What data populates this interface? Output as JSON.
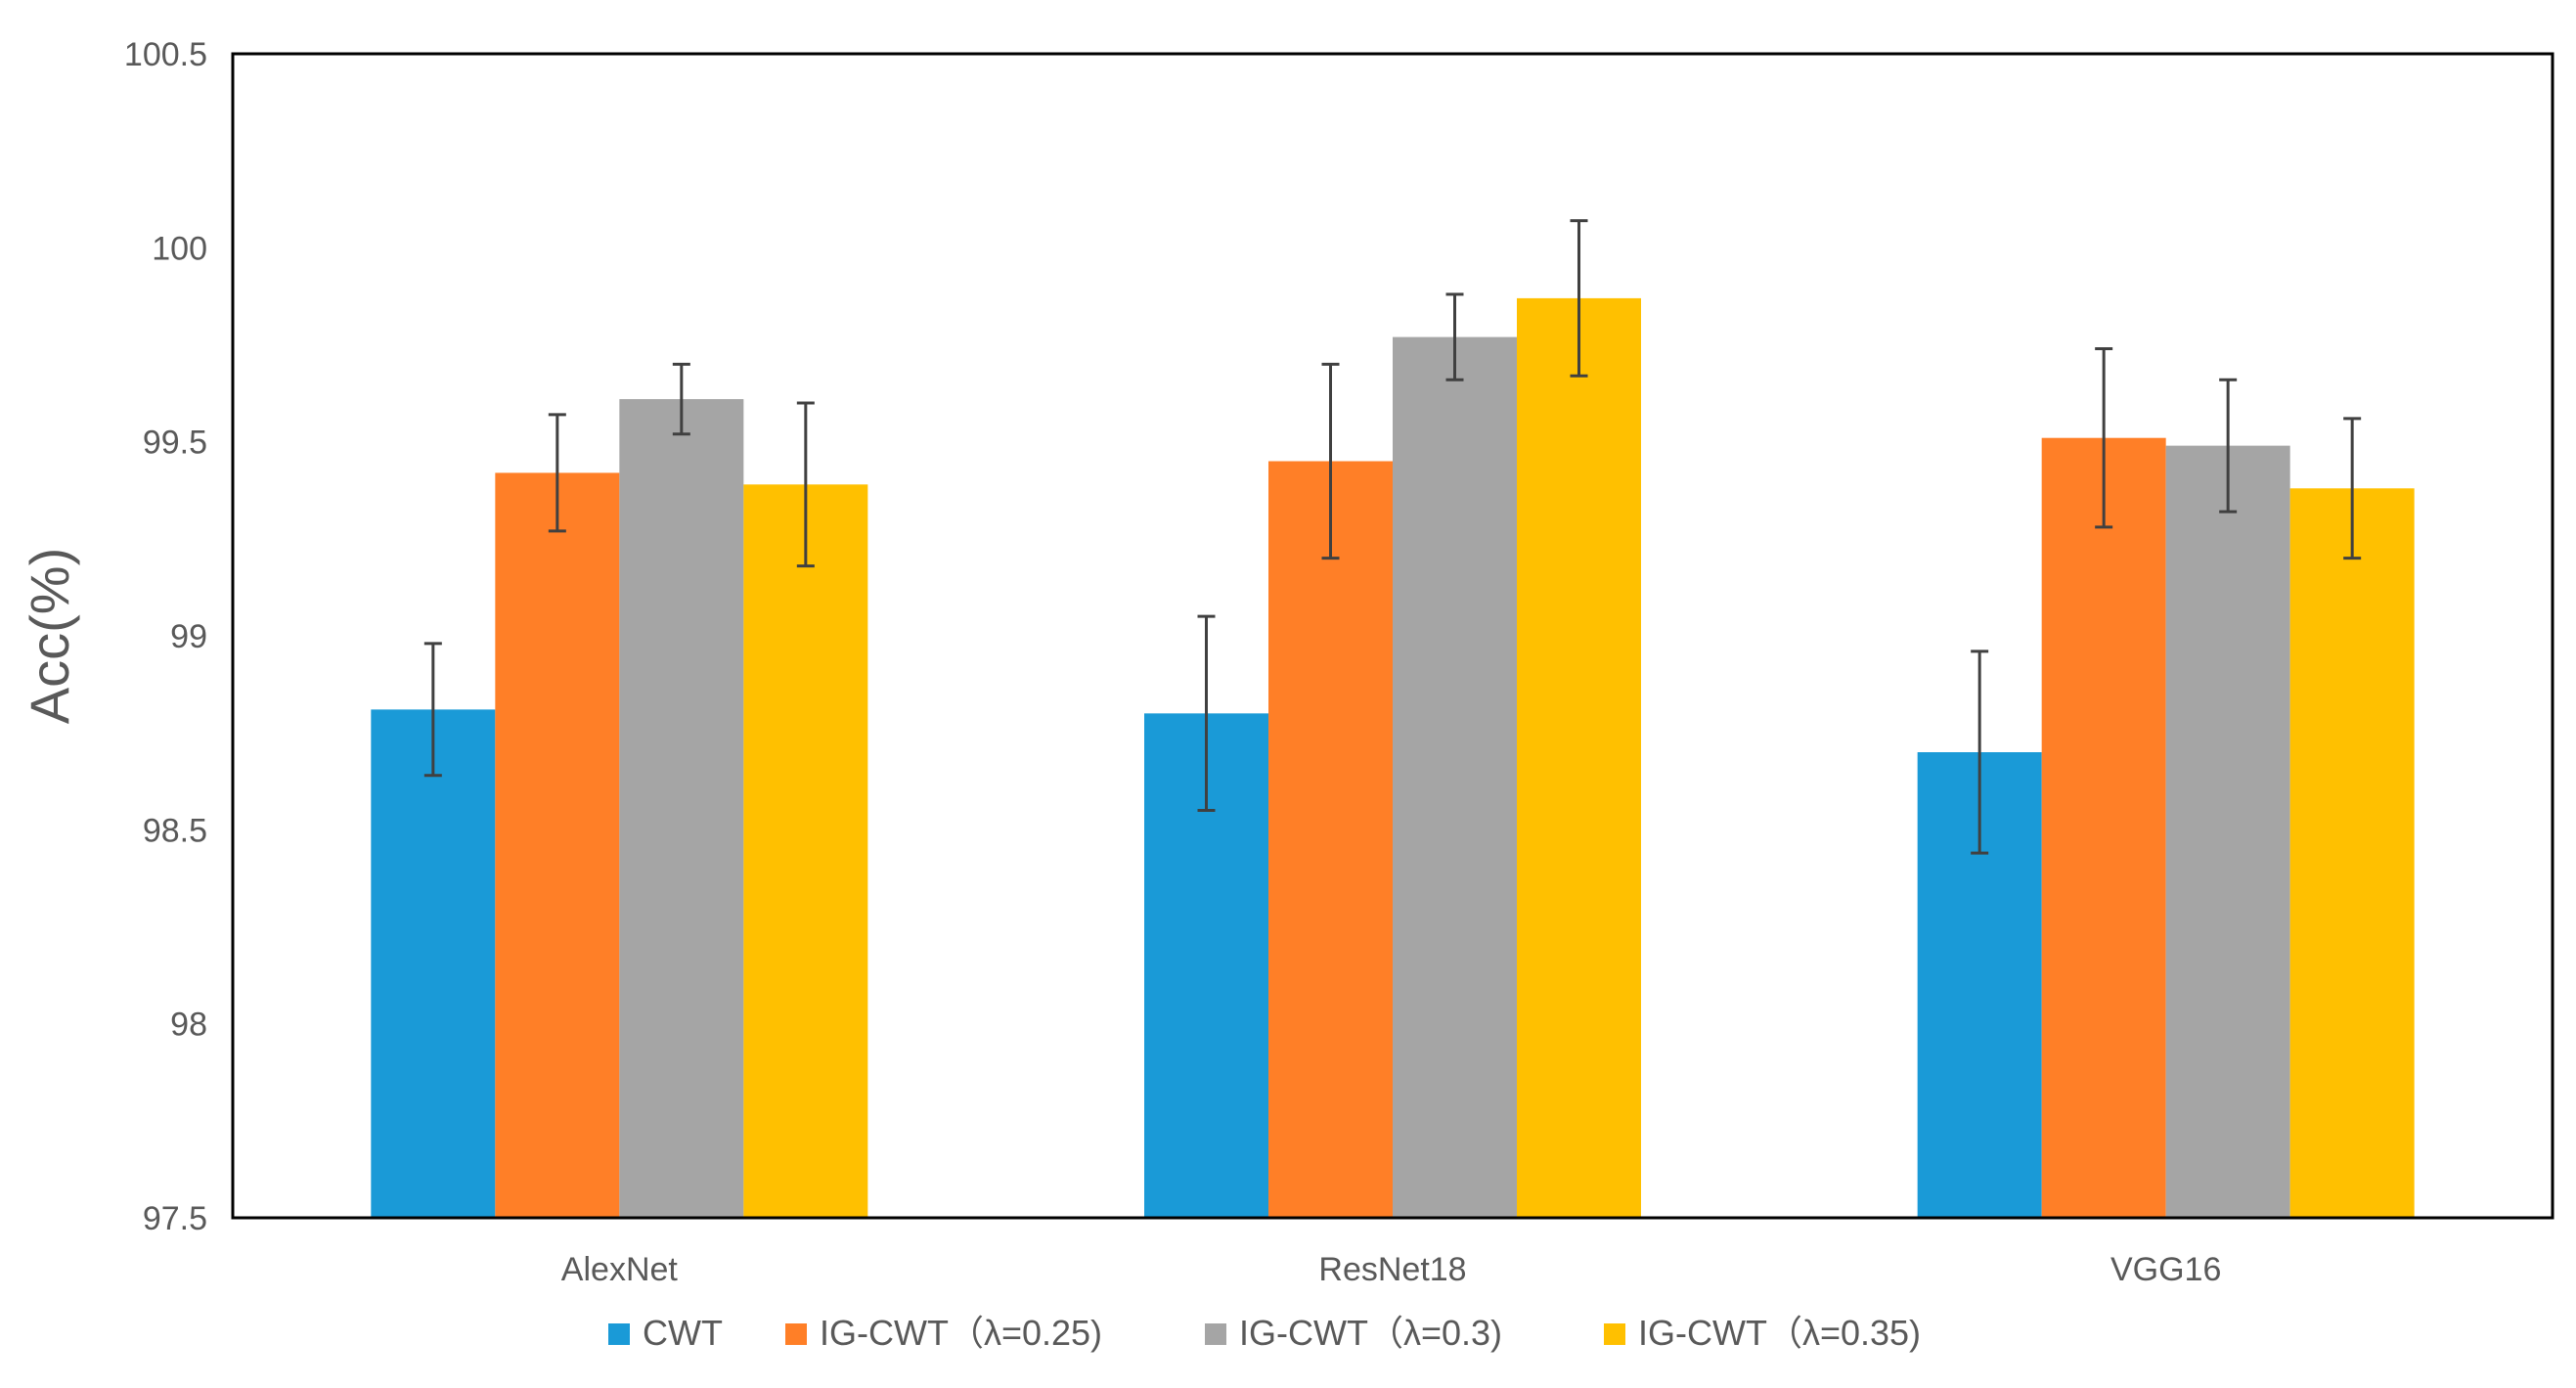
{
  "chart_data": {
    "type": "bar",
    "title": "",
    "xlabel": "",
    "ylabel": "Acc(%)",
    "ylim": [
      97.5,
      100.5
    ],
    "yticks": [
      97.5,
      98,
      98.5,
      99,
      99.5,
      100,
      100.5
    ],
    "ytick_labels": [
      "97.5",
      "98",
      "98.5",
      "99",
      "99.5",
      "100",
      "100.5"
    ],
    "categories": [
      "AlexNet",
      "ResNet18",
      "VGG16"
    ],
    "grid": false,
    "legend_position": "bottom",
    "series": [
      {
        "name": "CWT",
        "color": "#1A9AD7",
        "values": [
          98.81,
          98.8,
          98.7
        ],
        "errors": [
          0.17,
          0.25,
          0.26
        ]
      },
      {
        "name": "IG-CWT（λ=0.25)",
        "color": "#FF7F27",
        "values": [
          99.42,
          99.45,
          99.51
        ],
        "errors": [
          0.15,
          0.25,
          0.23
        ]
      },
      {
        "name": "IG-CWT（λ=0.3)",
        "color": "#A5A5A5",
        "values": [
          99.61,
          99.77,
          99.49
        ],
        "errors": [
          0.09,
          0.11,
          0.17
        ]
      },
      {
        "name": "IG-CWT（λ=0.35)",
        "color": "#FFC000",
        "values": [
          99.39,
          99.87,
          99.38
        ],
        "errors": [
          0.21,
          0.2,
          0.18
        ]
      }
    ]
  }
}
